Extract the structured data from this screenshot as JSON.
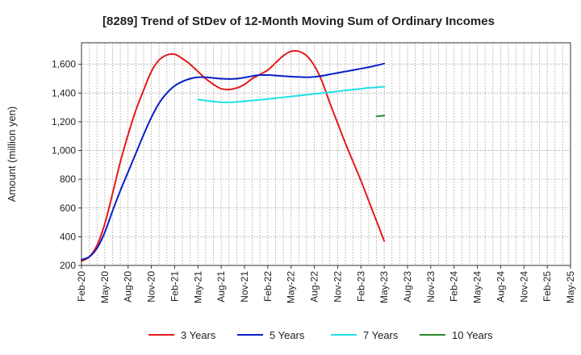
{
  "chart_data": {
    "type": "line",
    "title": "[8289]  Trend of StDev of 12-Month Moving Sum of Ordinary Incomes",
    "ylabel": "Amount (million yen)",
    "xlabel": "",
    "ylim": [
      200,
      1750
    ],
    "yticks": [
      200,
      400,
      600,
      800,
      1000,
      1200,
      1400,
      1600
    ],
    "ytick_labels": [
      "200",
      "400",
      "600",
      "800",
      "1,000",
      "1,200",
      "1,400",
      "1,600"
    ],
    "x_categories": [
      "Feb-20",
      "May-20",
      "Aug-20",
      "Nov-20",
      "Feb-21",
      "May-21",
      "Aug-21",
      "Nov-21",
      "Feb-22",
      "May-22",
      "Aug-22",
      "Nov-22",
      "Feb-23",
      "May-23",
      "Aug-23",
      "Nov-23",
      "Feb-24",
      "May-24",
      "Aug-24",
      "Nov-24",
      "Feb-25",
      "May-25"
    ],
    "grid": true,
    "legend_position": "bottom",
    "series": [
      {
        "name": "3 Years",
        "color": "#e31a1c",
        "start_index": 0,
        "values": [
          230,
          260,
          340,
          490,
          700,
          920,
          1110,
          1280,
          1420,
          1550,
          1630,
          1665,
          1670,
          1640,
          1600,
          1550,
          1500,
          1460,
          1430,
          1425,
          1435,
          1460,
          1500,
          1530,
          1560,
          1610,
          1660,
          1690,
          1690,
          1660,
          1590,
          1480,
          1330,
          1190,
          1050,
          920,
          790,
          650,
          510,
          370
        ]
      },
      {
        "name": "5 Years",
        "color": "#0a1fc4",
        "start_index": 0,
        "values": [
          240,
          260,
          320,
          430,
          580,
          720,
          850,
          980,
          1110,
          1230,
          1330,
          1400,
          1450,
          1480,
          1500,
          1510,
          1510,
          1505,
          1500,
          1498,
          1500,
          1508,
          1518,
          1525,
          1525,
          1522,
          1518,
          1514,
          1512,
          1510,
          1513,
          1520,
          1530,
          1540,
          1550,
          1560,
          1570,
          1580,
          1592,
          1605
        ]
      },
      {
        "name": "7 Years",
        "color": "#22e0e8",
        "start_index": 15,
        "values": [
          1355,
          1348,
          1341,
          1336,
          1335,
          1338,
          1343,
          1348,
          1353,
          1358,
          1364,
          1370,
          1376,
          1382,
          1388,
          1394,
          1400,
          1406,
          1412,
          1418,
          1424,
          1430,
          1436,
          1440,
          1443
        ]
      },
      {
        "name": "10 Years",
        "color": "#2a8a2a",
        "start_index": 38,
        "values": [
          1238,
          1243
        ]
      }
    ]
  }
}
